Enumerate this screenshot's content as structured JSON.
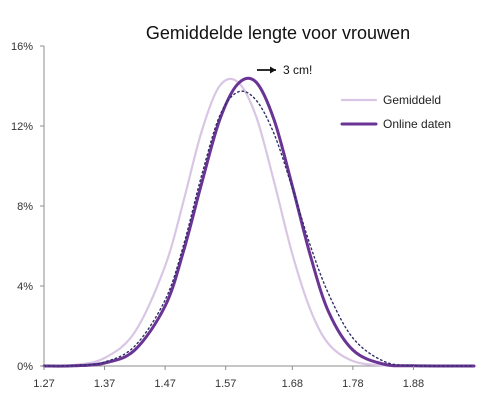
{
  "colors": {
    "gemiddeld": "#d9c6e4",
    "online": "#6a3494",
    "dotted": "#2f2f68",
    "axis": "#8c8c8c"
  },
  "chart_data": {
    "type": "line",
    "title": "Gemiddelde lengte voor vrouwen",
    "xlabel": "",
    "ylabel": "",
    "xlim": [
      1.27,
      1.98
    ],
    "ylim": [
      0,
      16
    ],
    "x_ticks": [
      "1.27",
      "1.37",
      "1.47",
      "1.57",
      "1.68",
      "1.78",
      "1.88"
    ],
    "y_ticks": [
      "0%",
      "4%",
      "8%",
      "12%",
      "16%"
    ],
    "legend": {
      "position": "top-right",
      "items": [
        "Gemiddeld",
        "Online daten"
      ]
    },
    "annotation": "3 cm!",
    "series": [
      {
        "name": "Gemiddeld",
        "x": [
          1.27,
          1.32,
          1.37,
          1.42,
          1.47,
          1.5,
          1.53,
          1.56,
          1.59,
          1.62,
          1.65,
          1.68,
          1.71,
          1.74,
          1.78,
          1.83,
          1.88,
          1.98
        ],
        "y": [
          0,
          0.05,
          0.4,
          1.7,
          5.0,
          8.2,
          11.7,
          14.0,
          14.2,
          12.5,
          9.2,
          5.6,
          2.8,
          1.1,
          0.25,
          0.03,
          0,
          0
        ]
      },
      {
        "name": "Online daten",
        "x": [
          1.27,
          1.32,
          1.37,
          1.42,
          1.47,
          1.5,
          1.53,
          1.56,
          1.59,
          1.62,
          1.65,
          1.68,
          1.71,
          1.74,
          1.78,
          1.83,
          1.88,
          1.98
        ],
        "y": [
          0,
          0.01,
          0.15,
          0.8,
          3.0,
          5.7,
          9.1,
          12.3,
          14.1,
          14.2,
          12.3,
          9.0,
          5.5,
          2.7,
          0.8,
          0.1,
          0.01,
          0
        ]
      },
      {
        "x": [
          1.27,
          1.32,
          1.37,
          1.42,
          1.47,
          1.5,
          1.53,
          1.56,
          1.59,
          1.62,
          1.65,
          1.68,
          1.71,
          1.74,
          1.78,
          1.83,
          1.88,
          1.98
        ],
        "y": [
          0,
          0.02,
          0.2,
          1.0,
          3.3,
          6.0,
          9.5,
          12.5,
          13.7,
          13.3,
          11.6,
          8.9,
          6.0,
          3.6,
          1.4,
          0.25,
          0.02,
          0
        ],
        "style": "dotted"
      }
    ]
  }
}
